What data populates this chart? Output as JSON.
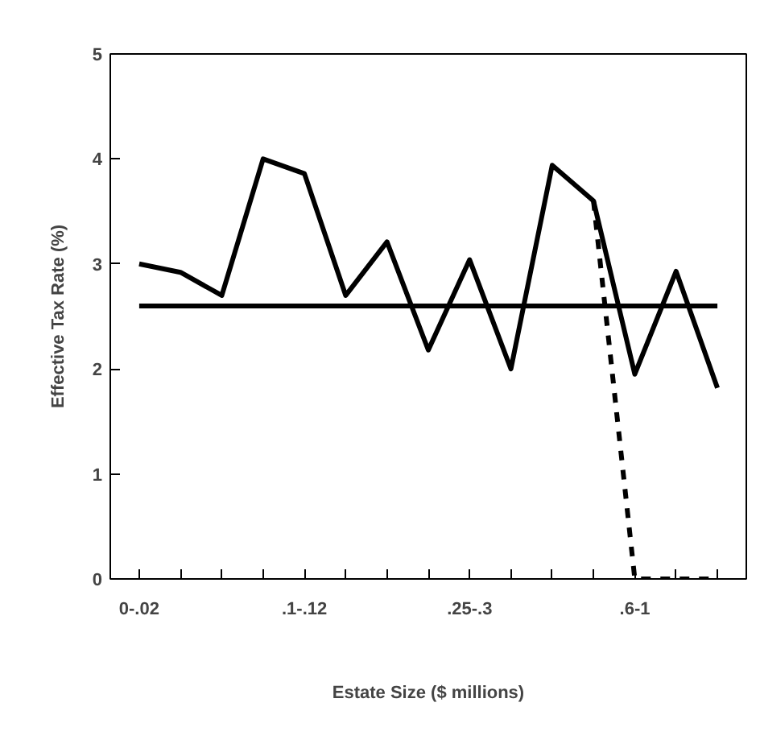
{
  "chart_data": {
    "type": "line",
    "xlabel": "Estate Size ($ millions)",
    "ylabel": "Effective Tax Rate (%)",
    "categories": [
      "0-.02",
      null,
      null,
      null,
      ".1-.12",
      null,
      null,
      null,
      ".25-.3",
      null,
      null,
      null,
      ".6-1",
      null,
      null
    ],
    "ylim": [
      0,
      5
    ],
    "yticks": [
      0,
      1,
      2,
      3,
      4,
      5
    ],
    "series": [
      {
        "color": "#000000",
        "line_style": "solid",
        "values": [
          3.0,
          2.92,
          2.7,
          4.0,
          3.86,
          2.7,
          3.21,
          2.18,
          3.04,
          2.0,
          3.94,
          3.6,
          1.95,
          2.93,
          1.82
        ]
      },
      {
        "color": "#000000",
        "line_style": "solid",
        "values": [
          2.6,
          2.6,
          2.6,
          2.6,
          2.6,
          2.6,
          2.6,
          2.6,
          2.6,
          2.6,
          2.6,
          2.6,
          2.6,
          2.6,
          2.6
        ]
      },
      {
        "color": "#000000",
        "line_style": "dashed",
        "values": [
          null,
          null,
          null,
          null,
          null,
          null,
          null,
          null,
          null,
          null,
          null,
          3.6,
          0,
          0,
          0
        ]
      }
    ]
  }
}
